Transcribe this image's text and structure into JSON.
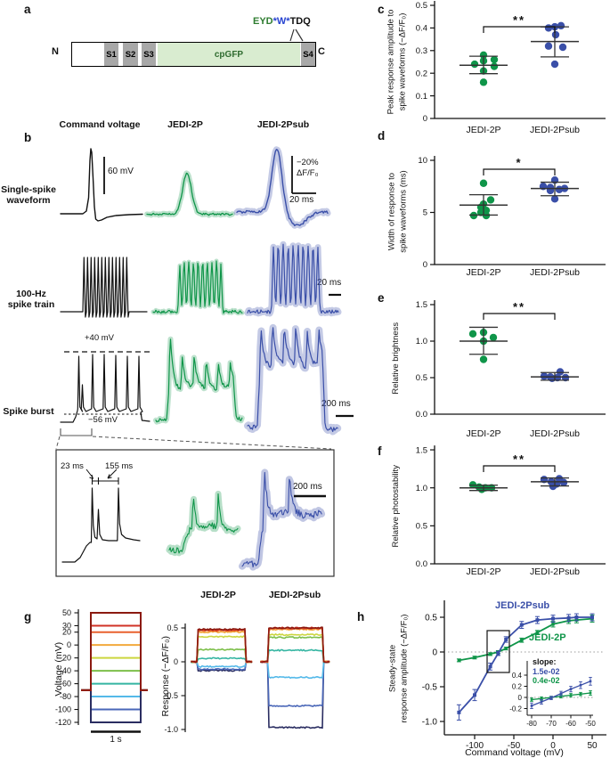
{
  "colors": {
    "green": "#0f9549",
    "blue": "#3a4fa8",
    "light_green": "#d9ecd0",
    "domain_gray": "#a8a8a8",
    "mutation_green": "#2f7d31",
    "mutation_blue": "#2743d0",
    "cpgfp_text": "#2f6b2f"
  },
  "panels": {
    "a": {
      "letter": "a",
      "n_term": "N",
      "c_term": "C",
      "segments": [
        "S1",
        "S2",
        "S3"
      ],
      "cpgfp": "cpGFP",
      "s4": "S4",
      "mutation_green": "EYD",
      "mutation_blue": "*W*",
      "mutation_black": "TDQ"
    },
    "b": {
      "letter": "b",
      "columns": [
        "Command voltage",
        "JEDI-2P",
        "JEDI-2Psub"
      ],
      "row1_label_l1": "Single-spike",
      "row1_label_l2": "waveform",
      "row2_label_l1": "100-Hz",
      "row2_label_l2": "spike train",
      "row3_label": "Spike burst",
      "scale_voltage": "60 mV",
      "scale_df_l1": "−20%",
      "scale_df_l2": "ΔF/F₀",
      "scale_20ms_a": "20 ms",
      "scale_20ms_b": "20 ms",
      "top_dashed": "+40 mV",
      "bottom_dashed": "−56 mV",
      "scale_200ms": "200 ms",
      "inset": {
        "interval_1": "23 ms",
        "interval_2": "155 ms",
        "scale": "200 ms"
      }
    },
    "c": {
      "letter": "c"
    },
    "d": {
      "letter": "d"
    },
    "e": {
      "letter": "e"
    },
    "f": {
      "letter": "f"
    },
    "g": {
      "letter": "g",
      "ylabel_left": "Voltage (mV)",
      "scale_time": "1 s",
      "ylabel_right": "Response (−ΔF/F₀)"
    },
    "h": {
      "letter": "h",
      "ylabel_l1": "Steady-state",
      "ylabel_l2": "response amplitude (−ΔF/F₀)",
      "xlabel": "Command voltage (mV)"
    }
  },
  "chart_data": [
    {
      "id": "c",
      "type": "scatter",
      "ylabel_lines": [
        "Peak response amplitude to",
        "spike waveforms (−ΔF/F₀)"
      ],
      "ylim": [
        0,
        0.5
      ],
      "yticks": [
        0,
        0.1,
        0.2,
        0.3,
        0.4,
        0.5
      ],
      "ytick_labels": [
        "0",
        "0.1",
        "0.2",
        "0.3",
        "0.4",
        "0.5"
      ],
      "categories": [
        "JEDI-2P",
        "JEDI-2Psub"
      ],
      "significance": "**",
      "series": [
        {
          "name": "JEDI-2P",
          "color_key": "green",
          "values": [
            0.24,
            0.28,
            0.255,
            0.21,
            0.16,
            0.26,
            0.23
          ],
          "dx": [
            -10,
            0,
            0,
            0,
            0,
            12,
            12
          ],
          "mean": 0.235,
          "err_low": 0.198,
          "err_high": 0.275
        },
        {
          "name": "JEDI-2Psub",
          "color_key": "blue",
          "values": [
            0.4,
            0.41,
            0.405,
            0.37,
            0.32,
            0.315,
            0.24
          ],
          "dx": [
            -7,
            7,
            0,
            1,
            -7,
            9,
            0
          ],
          "mean": 0.34,
          "err_low": 0.272,
          "err_high": 0.405
        }
      ]
    },
    {
      "id": "d",
      "type": "scatter",
      "ylabel_lines": [
        "Width of response to",
        "spike waveforms (ms)"
      ],
      "ylim": [
        0,
        10
      ],
      "yticks": [
        0,
        5,
        10
      ],
      "ytick_labels": [
        "0",
        "5",
        "10"
      ],
      "categories": [
        "JEDI-2P",
        "JEDI-2Psub"
      ],
      "significance": "*",
      "series": [
        {
          "name": "JEDI-2P",
          "color_key": "green",
          "values": [
            7.8,
            6.2,
            5.8,
            5.5,
            5.2,
            5.0,
            4.7,
            4.7
          ],
          "dx": [
            0,
            8,
            0,
            -3,
            3,
            -3,
            -11,
            3
          ],
          "mean": 5.7,
          "err_low": 4.75,
          "err_high": 6.7
        },
        {
          "name": "JEDI-2Psub",
          "color_key": "blue",
          "values": [
            8.1,
            7.5,
            7.4,
            7.3,
            7.2,
            7.1,
            6.3
          ],
          "dx": [
            0,
            -13,
            -5,
            11,
            5,
            -5,
            0
          ],
          "mean": 7.3,
          "err_low": 6.6,
          "err_high": 7.9
        }
      ]
    },
    {
      "id": "e",
      "type": "scatter",
      "ylabel_lines": [
        "Relative brightness"
      ],
      "ylim": [
        0,
        1.5
      ],
      "yticks": [
        0,
        0.5,
        1.0,
        1.5
      ],
      "ytick_labels": [
        "0.0",
        "0.5",
        "1.0",
        "1.5"
      ],
      "categories": [
        "JEDI-2P",
        "JEDI-2Psub"
      ],
      "significance": "**",
      "series": [
        {
          "name": "JEDI-2P",
          "color_key": "green",
          "values": [
            1.1,
            1.12,
            1.05,
            1.0,
            0.75
          ],
          "dx": [
            -12,
            0,
            11,
            0,
            0
          ],
          "mean": 1.0,
          "err_low": 0.82,
          "err_high": 1.19
        },
        {
          "name": "JEDI-2Psub",
          "color_key": "blue",
          "values": [
            0.58,
            0.52,
            0.51,
            0.5,
            0.5,
            0.49
          ],
          "dx": [
            6,
            -12,
            -5,
            3,
            12,
            -3
          ],
          "mean": 0.51,
          "err_low": 0.465,
          "err_high": 0.57
        }
      ]
    },
    {
      "id": "f",
      "type": "scatter",
      "ylabel_lines": [
        "Relative photostability"
      ],
      "ylim": [
        0,
        1.5
      ],
      "yticks": [
        0,
        0.5,
        1.0,
        1.5
      ],
      "ytick_labels": [
        "0.0",
        "0.5",
        "1.0",
        "1.5"
      ],
      "categories": [
        "JEDI-2P",
        "JEDI-2Psub"
      ],
      "significance": "**",
      "series": [
        {
          "name": "JEDI-2P",
          "color_key": "green",
          "values": [
            1.04,
            1.01,
            1.0,
            1.0,
            0.98
          ],
          "dx": [
            -12,
            -5,
            2,
            9,
            -2
          ],
          "mean": 1.0,
          "err_low": 0.965,
          "err_high": 1.035
        },
        {
          "name": "JEDI-2Psub",
          "color_key": "blue",
          "values": [
            1.11,
            1.12,
            1.08,
            1.07,
            1.05,
            1.02
          ],
          "dx": [
            -12,
            5,
            -4,
            10,
            2,
            -2
          ],
          "mean": 1.08,
          "err_low": 1.025,
          "err_high": 1.13
        }
      ]
    },
    {
      "id": "g-voltage",
      "type": "line",
      "ylabel": "Voltage (mV)",
      "yticks": [
        50,
        30,
        20,
        0,
        -20,
        -40,
        -60,
        -80,
        -100,
        -120
      ],
      "holding_mV": -70,
      "time_scale": "1 s",
      "steps": [
        {
          "mV": 50,
          "color": "#8b1a10"
        },
        {
          "mV": 30,
          "color": "#d03226"
        },
        {
          "mV": 20,
          "color": "#e9612e"
        },
        {
          "mV": 0,
          "color": "#f2a93c"
        },
        {
          "mV": -20,
          "color": "#ccd63f"
        },
        {
          "mV": -40,
          "color": "#7dbf4a"
        },
        {
          "mV": -60,
          "color": "#35b5a2"
        },
        {
          "mV": -80,
          "color": "#54b9e9"
        },
        {
          "mV": -100,
          "color": "#4a67b8"
        },
        {
          "mV": -120,
          "color": "#2a2d61"
        }
      ]
    },
    {
      "id": "g-response",
      "type": "line",
      "ylabel": "Response (−ΔF/F₀)",
      "yticks": [
        0.5,
        0,
        -0.5,
        -1.0
      ],
      "ytick_labels": [
        "0.5",
        "0",
        "-0.5",
        "-1.0"
      ],
      "groups": [
        {
          "name": "JEDI-2P",
          "amplitudes": [
            0.48,
            0.47,
            0.46,
            0.44,
            0.37,
            0.18,
            0.05,
            -0.07,
            -0.11,
            -0.13
          ]
        },
        {
          "name": "JEDI-2Psub",
          "amplitudes": [
            0.5,
            0.5,
            0.49,
            0.48,
            0.4,
            0.36,
            0.17,
            -0.23,
            -0.65,
            -0.97
          ]
        }
      ]
    },
    {
      "id": "h",
      "type": "line",
      "xlabel": "Command voltage (mV)",
      "ylabel": "Steady-state response amplitude (−ΔF/F₀)",
      "xticks": [
        -100,
        -50,
        0,
        50
      ],
      "xtick_labels": [
        "-100",
        "-50",
        "0",
        "50"
      ],
      "yticks": [
        0.5,
        0,
        -0.5,
        -1.0
      ],
      "ytick_labels": [
        "0.5",
        "0",
        "-0.5",
        "-1.0"
      ],
      "zero_line": true,
      "x": [
        -120,
        -100,
        -80,
        -70,
        -60,
        -40,
        -20,
        0,
        20,
        30,
        50
      ],
      "series": [
        {
          "name": "JEDI-2Psub",
          "color_key": "blue",
          "y": [
            -0.87,
            -0.62,
            -0.21,
            -0.02,
            0.18,
            0.39,
            0.46,
            0.48,
            0.49,
            0.5,
            0.5
          ],
          "err": [
            0.11,
            0.08,
            0.05,
            0.03,
            0.04,
            0.05,
            0.05,
            0.05,
            0.05,
            0.05,
            0.05
          ]
        },
        {
          "name": "JEDI-2P",
          "color_key": "green",
          "y": [
            -0.12,
            -0.08,
            -0.03,
            0.0,
            0.05,
            0.17,
            0.28,
            0.4,
            0.45,
            0.46,
            0.48
          ],
          "err": [
            0.02,
            0.02,
            0.02,
            0.02,
            0.02,
            0.03,
            0.03,
            0.04,
            0.04,
            0.04,
            0.05
          ]
        }
      ],
      "inset": {
        "slope_label": "slope:",
        "slopes": [
          {
            "name": "JEDI-2Psub",
            "value": "1.5e-02",
            "color_key": "blue"
          },
          {
            "name": "JEDI-2P",
            "value": "0.4e-02",
            "color_key": "green"
          }
        ],
        "x": [
          -80,
          -75,
          -70,
          -65,
          -60,
          -55,
          -50
        ],
        "xticks": [
          -80,
          -70,
          -60,
          -50
        ],
        "xtick_labels": [
          "-80",
          "-70",
          "-60",
          "-50"
        ],
        "yticks": [
          0.4,
          0.2,
          0,
          -0.2
        ],
        "ytick_labels": [
          "0.4",
          "0.2",
          "0",
          "-0.2"
        ],
        "series": [
          {
            "name": "JEDI-2Psub",
            "color_key": "blue",
            "y": [
              -0.15,
              -0.08,
              -0.01,
              0.07,
              0.15,
              0.22,
              0.29
            ],
            "err": [
              0.05,
              0.04,
              0.03,
              0.04,
              0.05,
              0.06,
              0.07
            ]
          },
          {
            "name": "JEDI-2P",
            "color_key": "green",
            "y": [
              -0.04,
              -0.02,
              0.0,
              0.02,
              0.04,
              0.06,
              0.08
            ],
            "err": [
              0.03,
              0.03,
              0.02,
              0.03,
              0.03,
              0.03,
              0.04
            ]
          }
        ]
      }
    }
  ]
}
